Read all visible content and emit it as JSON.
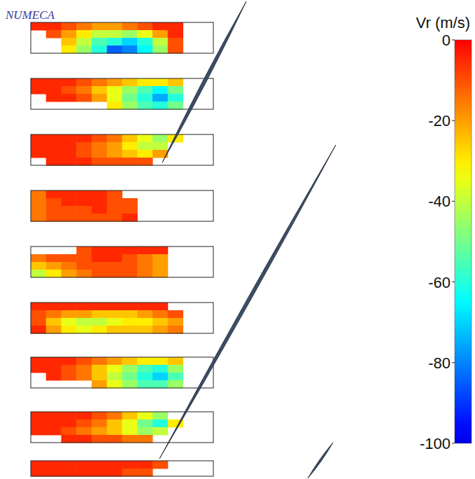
{
  "chart_data": {
    "type": "contour",
    "watermark": "NUMECA",
    "title": "Vr (m/s)",
    "colorbar": {
      "range": [
        -100,
        0
      ],
      "ticks": [
        0,
        -20,
        -40,
        -60,
        -80,
        -100
      ]
    },
    "slices": [
      {
        "cells": [
          [
            -5,
            -5,
            -10,
            -15,
            -20,
            -20,
            -15,
            -10,
            -5,
            -5,
            null,
            null
          ],
          [
            null,
            -10,
            -20,
            -30,
            -40,
            -40,
            -45,
            -35,
            -20,
            -5,
            null,
            null
          ],
          [
            null,
            null,
            -25,
            -40,
            -55,
            -60,
            -70,
            -60,
            -40,
            -10,
            null,
            null
          ],
          [
            null,
            null,
            -30,
            -45,
            -60,
            -85,
            -80,
            -65,
            -45,
            -10,
            null,
            null
          ]
        ]
      },
      {
        "cells": [
          [
            -5,
            -5,
            -5,
            -10,
            -15,
            -20,
            -25,
            -30,
            -30,
            -25,
            null,
            null
          ],
          [
            -5,
            -5,
            -10,
            -15,
            -25,
            -35,
            -45,
            -55,
            -65,
            -50,
            null,
            null
          ],
          [
            null,
            -5,
            -5,
            -10,
            -20,
            -35,
            -50,
            -60,
            -75,
            -60,
            null,
            null
          ],
          [
            null,
            null,
            null,
            null,
            null,
            -30,
            -45,
            -55,
            -60,
            -50,
            null,
            null
          ]
        ]
      },
      {
        "cells": [
          [
            -5,
            -5,
            -5,
            -5,
            -10,
            -15,
            -25,
            -35,
            -45,
            -30,
            null,
            null
          ],
          [
            -5,
            -5,
            -5,
            -10,
            -15,
            -20,
            -30,
            -40,
            -40,
            null,
            null,
            null
          ],
          [
            -5,
            -5,
            -5,
            -10,
            -15,
            -20,
            -25,
            -30,
            -20,
            null,
            null,
            null
          ],
          [
            null,
            -5,
            -5,
            -5,
            -10,
            -10,
            -10,
            -10,
            null,
            null,
            null,
            null
          ]
        ]
      },
      {
        "cells": [
          [
            -15,
            -5,
            -5,
            -5,
            -5,
            -10,
            null,
            null,
            null,
            null,
            null,
            null
          ],
          [
            -15,
            -10,
            -5,
            -5,
            -5,
            -10,
            -10,
            null,
            null,
            null,
            null,
            null
          ],
          [
            -15,
            -10,
            -10,
            -10,
            -5,
            -10,
            -10,
            null,
            null,
            null,
            null,
            null
          ],
          [
            -15,
            -10,
            -10,
            -10,
            -10,
            -10,
            -5,
            null,
            null,
            null,
            null,
            null
          ]
        ]
      },
      {
        "cells": [
          [
            null,
            null,
            null,
            -10,
            -5,
            -5,
            -5,
            -5,
            -5,
            null,
            null,
            null
          ],
          [
            -15,
            -10,
            -10,
            -10,
            -5,
            -5,
            -10,
            -15,
            -20,
            null,
            null,
            null
          ],
          [
            -25,
            -20,
            -15,
            -10,
            -10,
            -10,
            -10,
            -15,
            -20,
            null,
            null,
            null
          ],
          [
            -40,
            -30,
            -20,
            -15,
            -10,
            -10,
            -10,
            -15,
            -20,
            null,
            null,
            null
          ]
        ]
      },
      {
        "cells": [
          [
            -5,
            -5,
            -5,
            -5,
            -5,
            -5,
            -5,
            -5,
            -5,
            null,
            null,
            null
          ],
          [
            -10,
            -15,
            -20,
            -20,
            -25,
            -25,
            -25,
            -20,
            -15,
            -10,
            null,
            null
          ],
          [
            -10,
            -25,
            -35,
            -40,
            -40,
            -35,
            -30,
            -30,
            -25,
            -20,
            null,
            null
          ],
          [
            -5,
            -20,
            -30,
            -35,
            -30,
            -25,
            -25,
            -25,
            -20,
            -15,
            null,
            null
          ]
        ]
      },
      {
        "cells": [
          [
            -5,
            -5,
            -5,
            -10,
            -15,
            -20,
            -25,
            -30,
            -30,
            -25,
            null,
            null
          ],
          [
            -5,
            -5,
            -10,
            -15,
            -25,
            -35,
            -45,
            -55,
            -60,
            -45,
            null,
            null
          ],
          [
            null,
            -5,
            -10,
            -15,
            -25,
            -40,
            -50,
            -60,
            -70,
            -55,
            null,
            null
          ],
          [
            null,
            null,
            null,
            null,
            -20,
            -35,
            -45,
            -55,
            -55,
            -45,
            null,
            null
          ]
        ]
      },
      {
        "cells": [
          [
            -5,
            -5,
            -5,
            -5,
            -10,
            -15,
            -25,
            -35,
            -45,
            null,
            null,
            null
          ],
          [
            -5,
            -5,
            -5,
            -10,
            -15,
            -25,
            -35,
            -50,
            -60,
            -30,
            null,
            null
          ],
          [
            -5,
            -5,
            -10,
            -15,
            -20,
            -25,
            -35,
            -45,
            -40,
            null,
            null,
            null
          ],
          [
            null,
            null,
            -5,
            -5,
            -10,
            -10,
            -15,
            -15,
            null,
            null,
            null,
            null
          ]
        ]
      },
      {
        "cells": [
          [
            -5,
            -5,
            -5,
            -5,
            -5,
            -5,
            -5,
            -5,
            -10,
            null,
            null,
            null
          ],
          [
            -5,
            -5,
            -5,
            -5,
            -5,
            -5,
            -10,
            -10,
            null,
            null,
            null,
            null
          ]
        ]
      }
    ]
  }
}
